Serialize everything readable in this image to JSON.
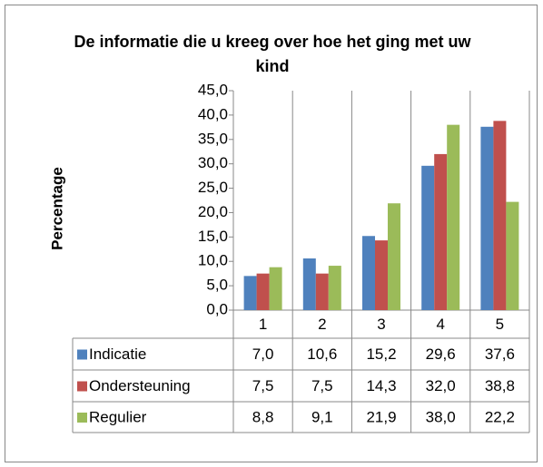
{
  "chart_data": {
    "type": "bar",
    "title": "De informatie die u kreeg over hoe het ging met uw kind",
    "y_label": "Percentage",
    "categories": [
      "1",
      "2",
      "3",
      "4",
      "5"
    ],
    "series": [
      {
        "name": "Indicatie",
        "color": "#4f81bd",
        "values": [
          7.0,
          10.6,
          15.2,
          29.6,
          37.6
        ],
        "value_labels": [
          "7,0",
          "10,6",
          "15,2",
          "29,6",
          "37,6"
        ]
      },
      {
        "name": "Ondersteuning",
        "color": "#c0504d",
        "values": [
          7.5,
          7.5,
          14.3,
          32.0,
          38.8
        ],
        "value_labels": [
          "7,5",
          "7,5",
          "14,3",
          "32,0",
          "38,8"
        ]
      },
      {
        "name": "Regulier",
        "color": "#9bbb59",
        "values": [
          8.8,
          9.1,
          21.9,
          38.0,
          22.2
        ],
        "value_labels": [
          "8,8",
          "9,1",
          "21,9",
          "38,0",
          "22,2"
        ]
      }
    ],
    "ylim": [
      0,
      45
    ],
    "yticks": [
      {
        "value": 0,
        "label": "0,0"
      },
      {
        "value": 5,
        "label": "5,0"
      },
      {
        "value": 10,
        "label": "10,0"
      },
      {
        "value": 15,
        "label": "15,0"
      },
      {
        "value": 20,
        "label": "20,0"
      },
      {
        "value": 25,
        "label": "25,0"
      },
      {
        "value": 30,
        "label": "30,0"
      },
      {
        "value": 35,
        "label": "35,0"
      },
      {
        "value": 40,
        "label": "40,0"
      },
      {
        "value": 45,
        "label": "45,0"
      }
    ],
    "grid": false
  }
}
